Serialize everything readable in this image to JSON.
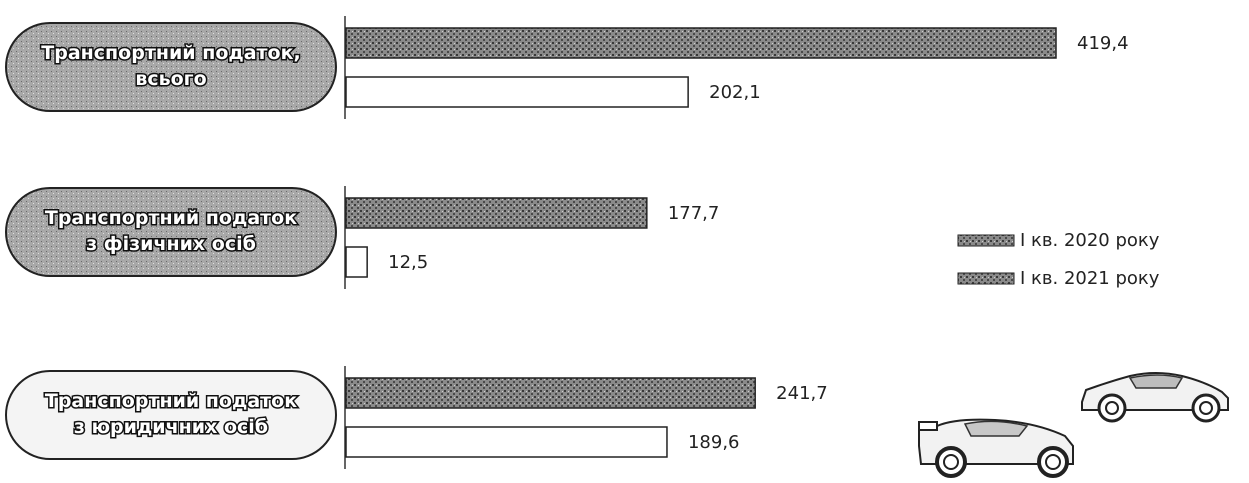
{
  "chart_data": {
    "type": "bar",
    "orientation": "horizontal",
    "categories": [
      [
        "Транспортний податок,",
        "всього"
      ],
      [
        "Транспортний податок",
        "з фізичних осіб"
      ],
      [
        "Транспортний податок",
        "з юридичних осіб"
      ]
    ],
    "series": [
      {
        "name": "I кв. 2020 року",
        "values": [
          419.4,
          177.7,
          241.7
        ],
        "value_labels": [
          "419,4",
          "177,7",
          "241,7"
        ]
      },
      {
        "name": "I кв. 2021 року",
        "values": [
          202.1,
          12.5,
          189.6
        ],
        "value_labels": [
          "202,1",
          "12,5",
          "189,6"
        ]
      }
    ],
    "xlim": [
      0,
      450
    ],
    "grid": false,
    "legend_position": "right",
    "colors": {
      "series_2020": "#7a7a7a",
      "series_2021": "#ffffff",
      "outline": "#222222",
      "pill_fill_dark": "#9a9a9a",
      "pill_fill_light": "#f4f4f4"
    }
  },
  "decorations": {
    "icons": [
      "sports-car-icon",
      "race-car-icon"
    ]
  }
}
